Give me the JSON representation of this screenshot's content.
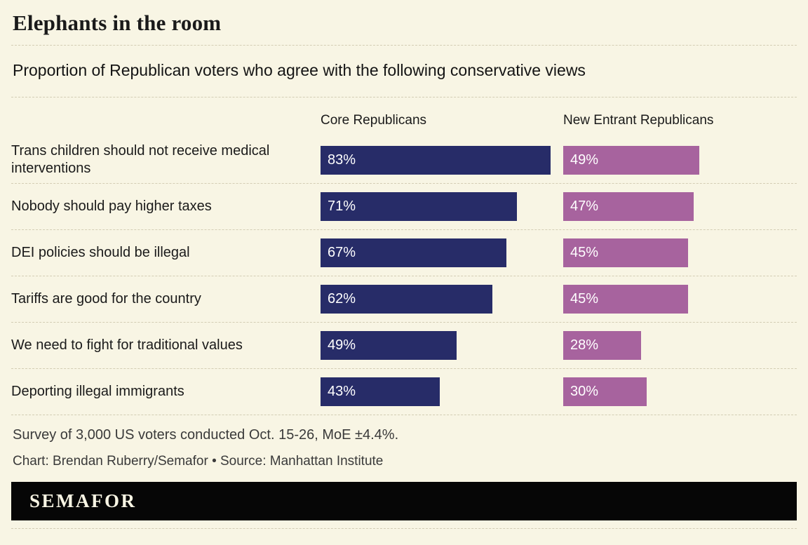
{
  "header": {
    "title": "Elephants in the room",
    "subtitle": "Proportion of Republican voters who agree with the following conservative views"
  },
  "chart_data": {
    "type": "bar",
    "title": "Elephants in the room",
    "subtitle": "Proportion of Republican voters who agree with the following conservative views",
    "orientation": "horizontal",
    "value_suffix": "%",
    "xlim": [
      0,
      100
    ],
    "grid": "off",
    "legend_position": "column-headers-top",
    "categories": [
      "Trans children should not receive medical interventions",
      "Nobody should pay higher taxes",
      "DEI policies should be illegal",
      "Tariffs are good for the country",
      "We need to fight for traditional values",
      "Deporting illegal immigrants"
    ],
    "series": [
      {
        "name": "Core Republicans",
        "color": "#272c68",
        "values": [
          83,
          71,
          67,
          62,
          49,
          43
        ]
      },
      {
        "name": "New Entrant Republicans",
        "color": "#a7639e",
        "values": [
          49,
          47,
          45,
          45,
          28,
          30
        ]
      }
    ]
  },
  "footer": {
    "note": "Survey of 3,000 US voters conducted Oct. 15-26, MoE ±4.4%.",
    "credit": "Chart: Brendan Ruberry/Semafor • Source: Manhattan Institute",
    "logo": "SEMAFOR"
  }
}
